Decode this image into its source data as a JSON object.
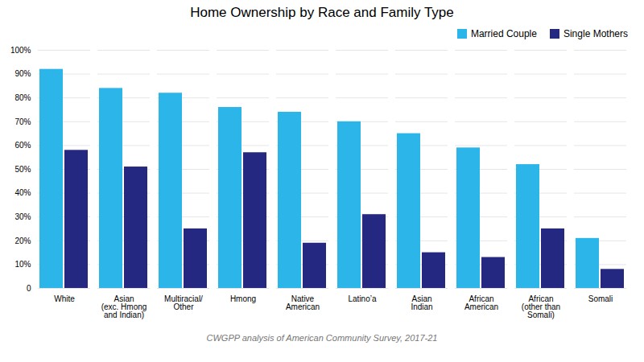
{
  "chart_data": {
    "type": "bar",
    "title": "Home Ownership by Race and Family Type",
    "categories": [
      "White",
      "Asian\n(exc. Hmong\nand Indian)",
      "Multiracial/\nOther",
      "Hmong",
      "Native\nAmerican",
      "Latino’a",
      "Asian\nIndian",
      "African\nAmerican",
      "African\n(other than\nSomali)",
      "Somali"
    ],
    "series": [
      {
        "name": "Married Couple",
        "color": "#2BB5E8",
        "values": [
          92,
          84,
          82,
          76,
          74,
          70,
          65,
          59,
          52,
          21
        ]
      },
      {
        "name": "Single Mothers",
        "color": "#252880",
        "values": [
          58,
          51,
          25,
          57,
          19,
          31,
          15,
          13,
          25,
          8
        ]
      }
    ],
    "ylim": [
      0,
      100
    ],
    "yticks": [
      0,
      {
        "value": 10,
        "label": "10%"
      },
      {
        "value": 20,
        "label": "20%"
      },
      {
        "value": 30,
        "label": "30%"
      },
      {
        "value": 40,
        "label": "40%"
      },
      {
        "value": 50,
        "label": "50%"
      },
      {
        "value": 60,
        "label": "60%"
      },
      {
        "value": 70,
        "label": "70%"
      },
      {
        "value": 80,
        "label": "80%"
      },
      {
        "value": 90,
        "label": "90%"
      },
      {
        "value": 100,
        "label": "100%"
      }
    ],
    "grid": true,
    "legend": "upper right",
    "footnote": "CWGPP analysis of American Community Survey, 2017-21"
  }
}
